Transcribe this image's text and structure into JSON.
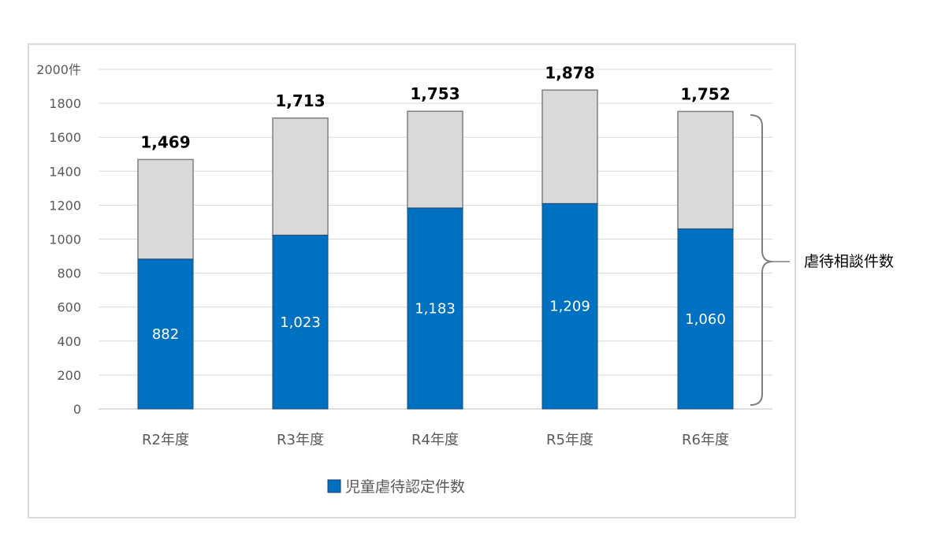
{
  "chart_data": {
    "type": "bar",
    "stacked": true,
    "categories": [
      "R2年度",
      "R3年度",
      "R4年度",
      "R5年度",
      "R6年度"
    ],
    "series": [
      {
        "name": "児童虐待認定件数",
        "values": [
          882,
          1023,
          1183,
          1209,
          1060
        ],
        "color": "#0070c0"
      },
      {
        "values": [
          587,
          690,
          570,
          669,
          692
        ],
        "color": "#d9d9d9"
      }
    ],
    "totals": [
      1469,
      1713,
      1753,
      1878,
      1752
    ],
    "total_labels": [
      "1,469",
      "1,713",
      "1,753",
      "1,878",
      "1,752"
    ],
    "inner_labels": [
      "882",
      "1,023",
      "1,183",
      "1,209",
      "1,060"
    ],
    "yticks": [
      "0",
      "200",
      "400",
      "600",
      "800",
      "1000",
      "1200",
      "1400",
      "1600",
      "1800",
      "2000件"
    ],
    "ylim": [
      0,
      2000
    ],
    "grid": true,
    "legend": {
      "label": "児童虐待認定件数",
      "placement": "bottom",
      "color": "#0070c0"
    },
    "annotation": {
      "label": "虐待相談件数",
      "type": "brace"
    },
    "colors": {
      "gridline": "#d9d9d9",
      "bar_outline": "#7f7f7f",
      "frame": "#d9d9d9"
    }
  }
}
